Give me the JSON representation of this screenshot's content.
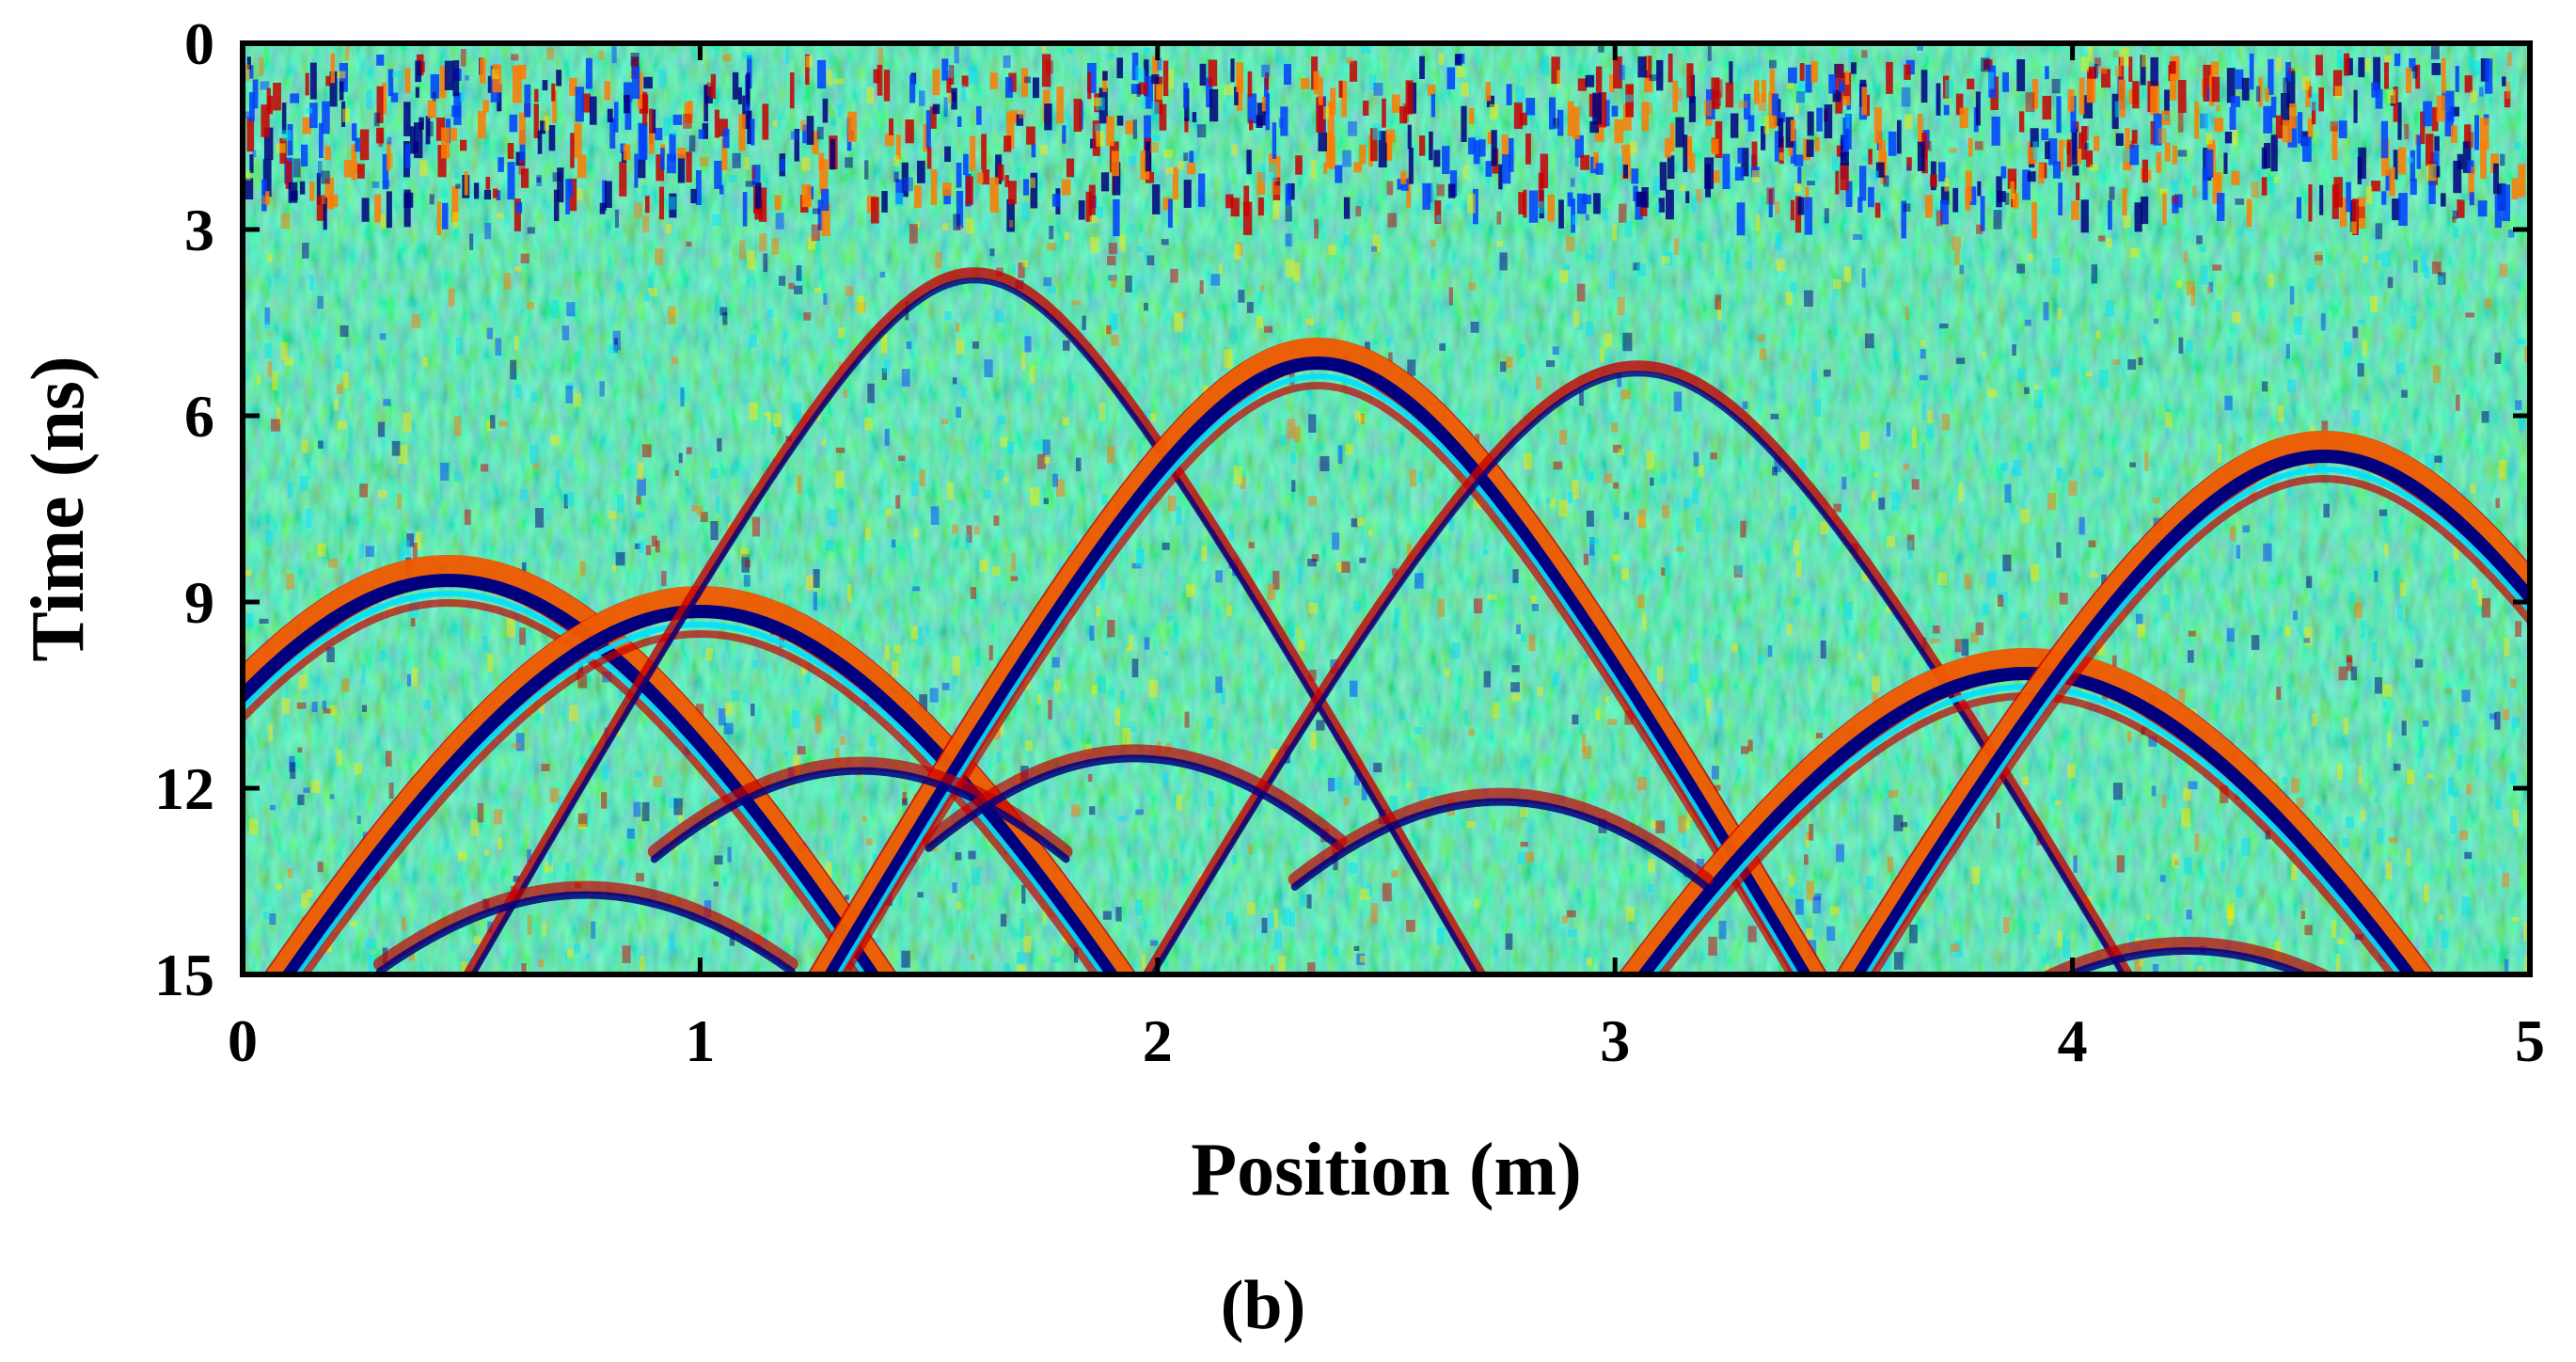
{
  "chart_data": {
    "type": "heatmap",
    "xlabel": "Position (m)",
    "ylabel": "Time (ns)",
    "xlim": [
      0,
      5
    ],
    "ylim": [
      0,
      15
    ],
    "y_axis_direction": "downward",
    "x_ticks": [
      "0",
      "1",
      "2",
      "3",
      "4",
      "5"
    ],
    "y_ticks": [
      "0",
      "3",
      "6",
      "9",
      "12",
      "15"
    ],
    "colormap": "jet",
    "grid": false,
    "legend": "none",
    "caption": "(b)",
    "hyperbolas": [
      {
        "apex_position_m": 0.45,
        "apex_time_ns": 8.5,
        "note": "strong"
      },
      {
        "apex_position_m": 1.0,
        "apex_time_ns": 9.0,
        "note": "strong"
      },
      {
        "apex_position_m": 1.6,
        "apex_time_ns": 3.7,
        "note": "weak"
      },
      {
        "apex_position_m": 2.35,
        "apex_time_ns": 5.0,
        "note": "strong"
      },
      {
        "apex_position_m": 3.05,
        "apex_time_ns": 5.2,
        "note": "weak"
      },
      {
        "apex_position_m": 3.9,
        "apex_time_ns": 10.0,
        "note": "strong"
      },
      {
        "apex_position_m": 4.55,
        "apex_time_ns": 6.5,
        "note": "strong"
      },
      {
        "apex_position_m": 1.35,
        "apex_time_ns": 11.6,
        "note": "secondary"
      },
      {
        "apex_position_m": 1.95,
        "apex_time_ns": 11.4,
        "note": "secondary"
      },
      {
        "apex_position_m": 2.75,
        "apex_time_ns": 12.1,
        "note": "secondary"
      },
      {
        "apex_position_m": 0.75,
        "apex_time_ns": 13.6,
        "note": "secondary"
      },
      {
        "apex_position_m": 4.25,
        "apex_time_ns": 14.5,
        "note": "secondary"
      }
    ],
    "colors": {
      "background": "#40f0c0",
      "deep_blue": "#00007f",
      "blue": "#0040ff",
      "cyan": "#00e0ff",
      "yellow": "#ffe800",
      "orange": "#ff7a00",
      "red": "#c80000"
    }
  }
}
